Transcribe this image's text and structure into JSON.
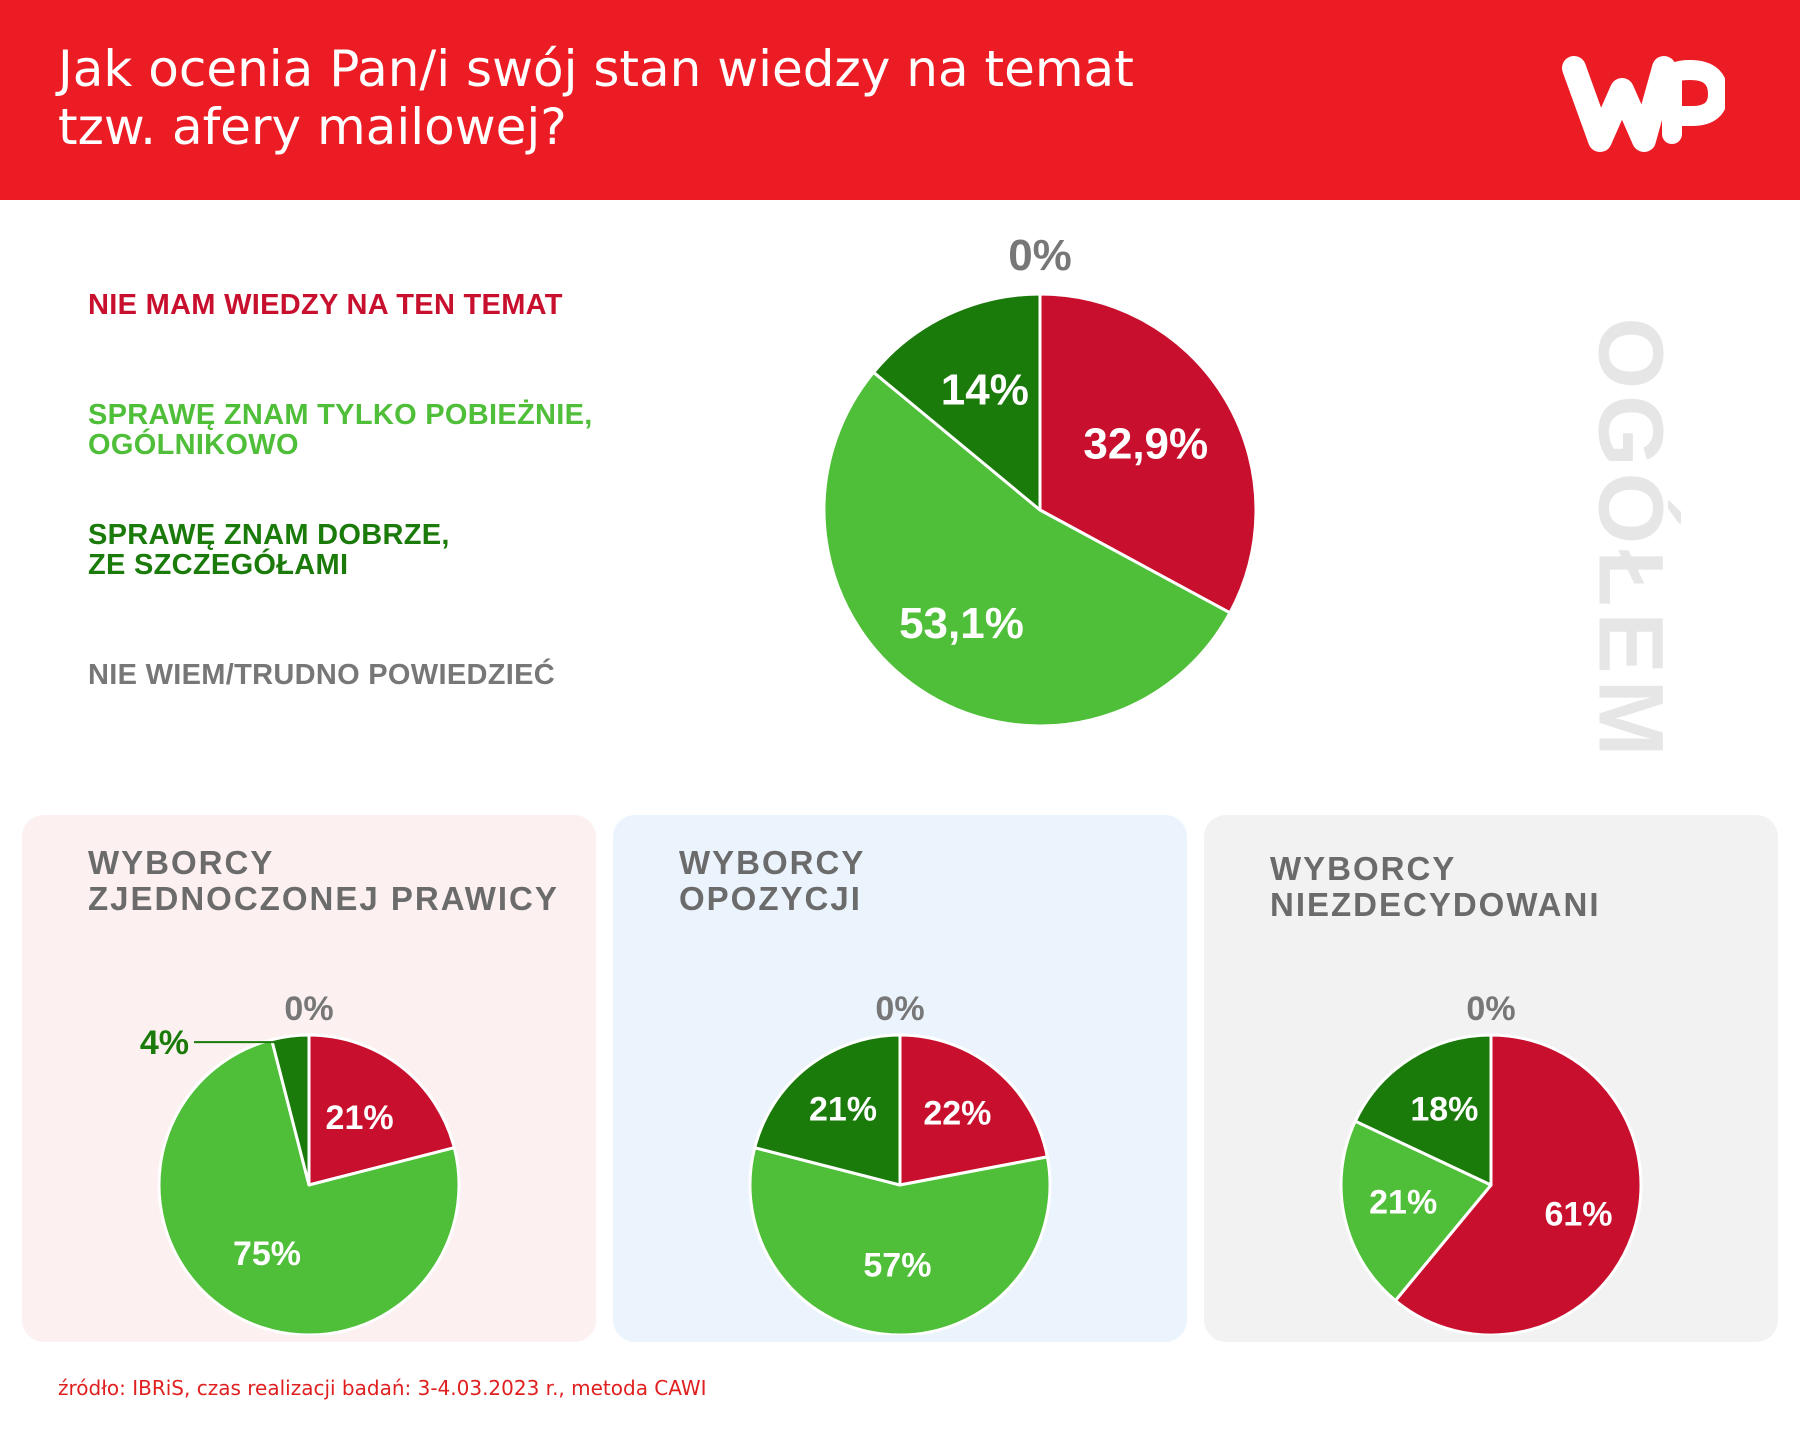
{
  "header": {
    "title_line1": "Jak ocenia Pan/i swój stan wiedzy na temat",
    "title_line2": "tzw. afery mailowej?",
    "background": "#ec1c24"
  },
  "logo": {
    "text": "WP",
    "icon": "wp-logo"
  },
  "legend": [
    {
      "lines": [
        "NIE MAM WIEDZY NA TEN TEMAT"
      ],
      "color": "#c8102e"
    },
    {
      "lines": [
        "SPRAWĘ ZNAM TYLKO POBIEŻNIE,",
        "OGÓLNIKOWO"
      ],
      "color": "#4fbe38"
    },
    {
      "lines": [
        "SPRAWĘ ZNAM DOBRZE,",
        "ZE SZCZEGÓŁAMI"
      ],
      "color": "#1a7a0a"
    },
    {
      "lines": [
        "NIE WIEM/TRUDNO POWIEDZIEĆ"
      ],
      "color": "#777777"
    }
  ],
  "side_label": "OGÓŁEM",
  "chart_data": [
    {
      "type": "pie",
      "title": "OGÓŁEM",
      "categories": [
        "NIE MAM WIEDZY NA TEN TEMAT",
        "SPRAWĘ ZNAM TYLKO POBIEŻNIE, OGÓLNIKOWO",
        "SPRAWĘ ZNAM DOBRZE, ZE SZCZEGÓŁAMI",
        "NIE WIEM/TRUDNO POWIEDZIEĆ"
      ],
      "values": [
        32.9,
        53.1,
        14,
        0
      ],
      "labels": [
        "32,9%",
        "53,1%",
        "14%",
        "0%"
      ],
      "colors": [
        "#c8102e",
        "#4fbe38",
        "#1a7a0a",
        "#777777"
      ]
    },
    {
      "type": "pie",
      "title": "WYBORCY ZJEDNOCZONEJ PRAWICY",
      "categories": [
        "NIE MAM WIEDZY NA TEN TEMAT",
        "SPRAWĘ ZNAM TYLKO POBIEŻNIE, OGÓLNIKOWO",
        "SPRAWĘ ZNAM DOBRZE, ZE SZCZEGÓŁAMI",
        "NIE WIEM/TRUDNO POWIEDZIEĆ"
      ],
      "values": [
        21,
        75,
        4,
        0
      ],
      "labels": [
        "21%",
        "75%",
        "4%",
        "0%"
      ],
      "colors": [
        "#c8102e",
        "#4fbe38",
        "#1a7a0a",
        "#777777"
      ]
    },
    {
      "type": "pie",
      "title": "WYBORCY OPOZYCJI",
      "categories": [
        "NIE MAM WIEDZY NA TEN TEMAT",
        "SPRAWĘ ZNAM TYLKO POBIEŻNIE, OGÓLNIKOWO",
        "SPRAWĘ ZNAM DOBRZE, ZE SZCZEGÓŁAMI",
        "NIE WIEM/TRUDNO POWIEDZIEĆ"
      ],
      "values": [
        22,
        57,
        21,
        0
      ],
      "labels": [
        "22%",
        "57%",
        "21%",
        "0%"
      ],
      "colors": [
        "#c8102e",
        "#4fbe38",
        "#1a7a0a",
        "#777777"
      ]
    },
    {
      "type": "pie",
      "title": "WYBORCY NIEZDECYDOWANI",
      "categories": [
        "NIE MAM WIEDZY NA TEN TEMAT",
        "SPRAWĘ ZNAM TYLKO POBIEŻNIE, OGÓLNIKOWO",
        "SPRAWĘ ZNAM DOBRZE, ZE SZCZEGÓŁAMI",
        "NIE WIEM/TRUDNO POWIEDZIEĆ"
      ],
      "values": [
        61,
        21,
        18,
        0
      ],
      "labels": [
        "61%",
        "21%",
        "18%",
        "0%"
      ],
      "colors": [
        "#c8102e",
        "#4fbe38",
        "#1a7a0a",
        "#777777"
      ]
    }
  ],
  "cards": [
    {
      "title_lines": [
        "WYBORCY",
        "ZJEDNOCZONEJ PRAWICY"
      ],
      "background": "#fcf0f0"
    },
    {
      "title_lines": [
        "WYBORCY",
        "OPOZYCJI"
      ],
      "background": "#ebf4fd"
    },
    {
      "title_lines": [
        "WYBORCY",
        "NIEZDECYDOWANI"
      ],
      "background": "#f2f2f2"
    }
  ],
  "source": "źródło: IBRiS, czas realizacji badań: 3-4.03.2023 r., metoda CAWI"
}
